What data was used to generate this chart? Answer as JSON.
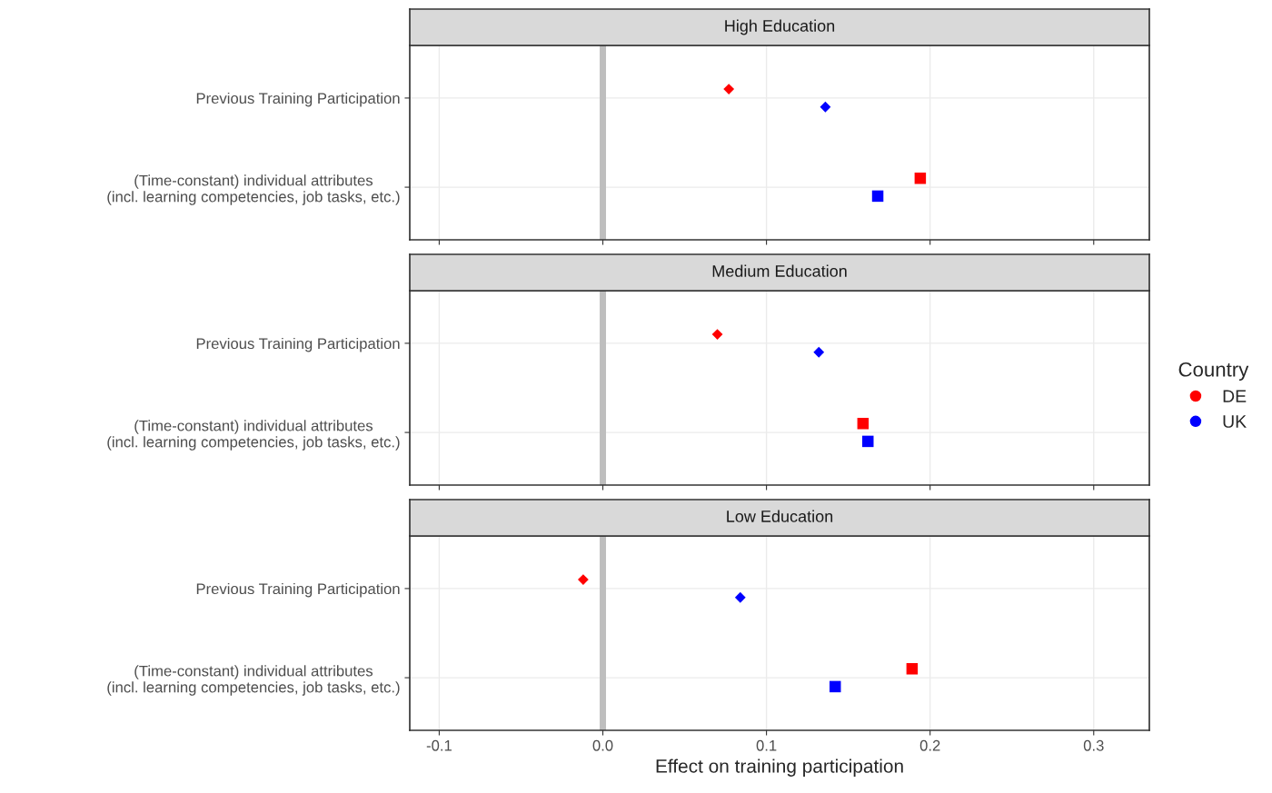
{
  "chart_data": [
    {
      "type": "scatter",
      "title": "High Education",
      "orientation": "horizontal",
      "categories": [
        "Previous Training Participation",
        "(Time-constant) individual attributes\n(incl. learning competencies, job tasks, etc.)"
      ],
      "xlim": [
        -0.118,
        0.334
      ],
      "xticks": [
        -0.1,
        0,
        0.1,
        0.2,
        0.3
      ],
      "tick_labels": "y",
      "grid": true,
      "legend": "right",
      "legend_title": "Country",
      "ref_lines": [
        {
          "axis": "x",
          "value": 0,
          "color": "#bebebe"
        }
      ],
      "series": [
        {
          "name": "DE",
          "color": "#ff0000",
          "marker": "diamond",
          "values": [
            0.077,
            null
          ]
        },
        {
          "name": "UK",
          "color": "#0000ff",
          "marker": "diamond",
          "values": [
            0.136,
            null
          ]
        },
        {
          "color": "#ff0000",
          "marker": "square",
          "values": [
            null,
            0.194
          ]
        },
        {
          "color": "#0000ff",
          "marker": "square",
          "values": [
            null,
            0.168
          ]
        }
      ]
    },
    {
      "type": "scatter",
      "title": "Medium Education",
      "orientation": "horizontal",
      "categories": [
        "Previous Training Participation",
        "(Time-constant) individual attributes\n(incl. learning competencies, job tasks, etc.)"
      ],
      "xlim": [
        -0.118,
        0.334
      ],
      "xticks": [
        -0.1,
        0,
        0.1,
        0.2,
        0.3
      ],
      "tick_labels": "y",
      "grid": true,
      "ref_lines": [
        {
          "axis": "x",
          "value": 0,
          "color": "#bebebe"
        }
      ],
      "series": [
        {
          "color": "#ff0000",
          "marker": "diamond",
          "values": [
            0.07,
            null
          ]
        },
        {
          "color": "#0000ff",
          "marker": "diamond",
          "values": [
            0.132,
            null
          ]
        },
        {
          "color": "#ff0000",
          "marker": "square",
          "values": [
            null,
            0.159
          ]
        },
        {
          "color": "#0000ff",
          "marker": "square",
          "values": [
            null,
            0.162
          ]
        }
      ]
    },
    {
      "type": "scatter",
      "title": "Low Education",
      "orientation": "horizontal",
      "categories": [
        "Previous Training Participation",
        "(Time-constant) individual attributes\n(incl. learning competencies, job tasks, etc.)"
      ],
      "xlim": [
        -0.118,
        0.334
      ],
      "xticks": [
        -0.1,
        {
          "value": 0,
          "label": "0.0"
        },
        0.1,
        0.2,
        0.3
      ],
      "xlabel": "Effect on training participation",
      "grid": true,
      "ref_lines": [
        {
          "axis": "x",
          "value": 0,
          "color": "#bebebe"
        }
      ],
      "series": [
        {
          "color": "#ff0000",
          "marker": "diamond",
          "values": [
            -0.012,
            null
          ]
        },
        {
          "color": "#0000ff",
          "marker": "diamond",
          "values": [
            0.084,
            null
          ]
        },
        {
          "color": "#ff0000",
          "marker": "square",
          "values": [
            null,
            0.189
          ]
        },
        {
          "color": "#0000ff",
          "marker": "square",
          "values": [
            null,
            0.142
          ]
        }
      ]
    }
  ]
}
